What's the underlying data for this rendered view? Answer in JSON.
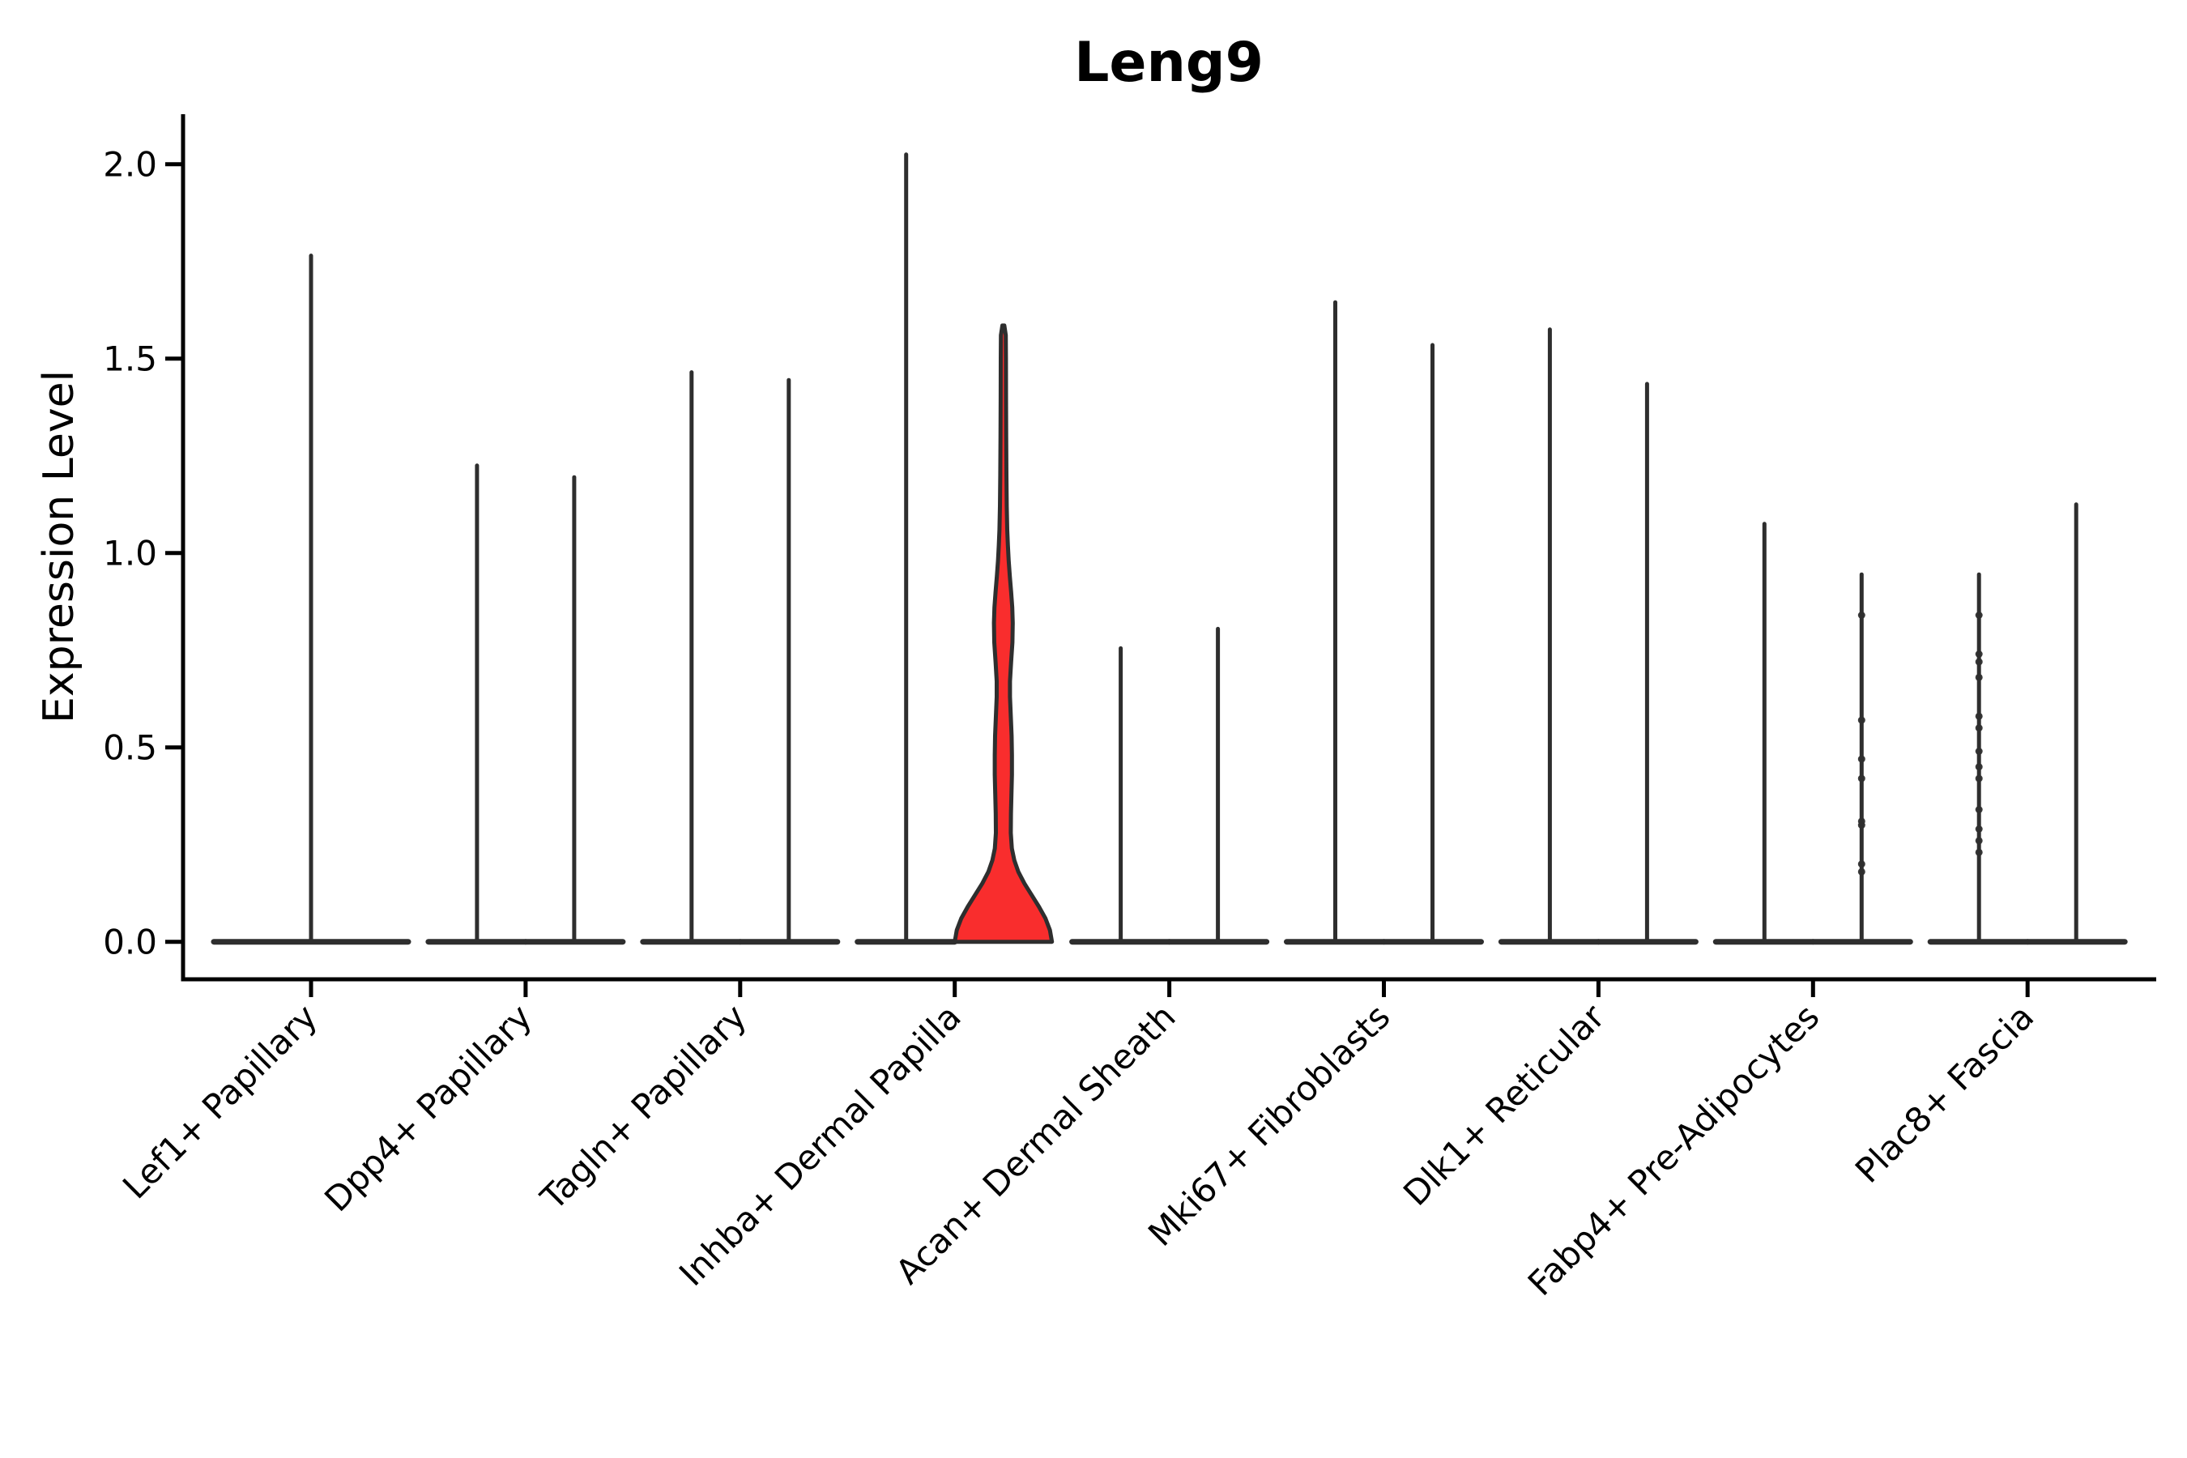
{
  "figure": {
    "title": "Leng9",
    "ylabel": "Expression Level"
  },
  "chart_data": {
    "type": "violin",
    "title": "Leng9",
    "xlabel": "",
    "ylabel": "Expression Level",
    "ylim": [
      0,
      2.1
    ],
    "yticks": [
      0.0,
      0.5,
      1.0,
      1.5,
      2.0
    ],
    "ytick_labels": [
      "0.0",
      "0.5",
      "1.0",
      "1.5",
      "2.0"
    ],
    "grid": false,
    "legend": null,
    "categories": [
      "Lef1+ Papillary",
      "Dpp4+ Papillary",
      "Tagln+ Papillary",
      "Inhba+ Dermal Papilla",
      "Acan+ Dermal Sheath",
      "Mki67+ Fibroblasts",
      "Dlk1+ Reticular",
      "Fabp4+ Pre-Adipocytes",
      "Plac8+ Fascia"
    ],
    "violins": [
      {
        "category": 0,
        "offset": "center",
        "max": 1.77,
        "highlighted": false
      },
      {
        "category": 1,
        "offset": "left",
        "max": 1.23,
        "highlighted": false
      },
      {
        "category": 1,
        "offset": "right",
        "max": 1.2,
        "highlighted": false
      },
      {
        "category": 2,
        "offset": "left",
        "max": 1.47,
        "highlighted": false
      },
      {
        "category": 2,
        "offset": "right",
        "max": 1.45,
        "highlighted": false
      },
      {
        "category": 3,
        "offset": "left",
        "max": 2.03,
        "highlighted": false
      },
      {
        "category": 3,
        "offset": "right",
        "max": 1.59,
        "highlighted": true
      },
      {
        "category": 4,
        "offset": "left",
        "max": 0.76,
        "highlighted": false
      },
      {
        "category": 4,
        "offset": "right",
        "max": 0.81,
        "highlighted": false
      },
      {
        "category": 5,
        "offset": "left",
        "max": 1.65,
        "highlighted": false
      },
      {
        "category": 5,
        "offset": "right",
        "max": 1.54,
        "highlighted": false
      },
      {
        "category": 6,
        "offset": "left",
        "max": 1.58,
        "highlighted": false
      },
      {
        "category": 6,
        "offset": "right",
        "max": 1.44,
        "highlighted": false
      },
      {
        "category": 7,
        "offset": "left",
        "max": 1.08,
        "highlighted": false
      },
      {
        "category": 7,
        "offset": "right",
        "max": 0.95,
        "highlighted": false,
        "dots": [
          0.18,
          0.2,
          0.3,
          0.31,
          0.42,
          0.47,
          0.57,
          0.84
        ]
      },
      {
        "category": 8,
        "offset": "left",
        "max": 0.95,
        "highlighted": false,
        "dots": [
          0.23,
          0.26,
          0.29,
          0.34,
          0.42,
          0.45,
          0.49,
          0.55,
          0.58,
          0.68,
          0.72,
          0.74,
          0.84
        ]
      },
      {
        "category": 8,
        "offset": "right",
        "max": 1.13,
        "highlighted": false
      }
    ],
    "highlight_profile": [
      [
        0.0,
        60.0
      ],
      [
        0.03,
        57.5
      ],
      [
        0.06,
        52.0
      ],
      [
        0.09,
        44.0
      ],
      [
        0.12,
        35.0
      ],
      [
        0.15,
        26.0
      ],
      [
        0.18,
        18.5
      ],
      [
        0.21,
        13.5
      ],
      [
        0.24,
        10.5
      ],
      [
        0.28,
        9.2
      ],
      [
        0.33,
        9.4
      ],
      [
        0.38,
        10.0
      ],
      [
        0.43,
        10.6
      ],
      [
        0.48,
        10.6
      ],
      [
        0.53,
        10.2
      ],
      [
        0.58,
        9.2
      ],
      [
        0.63,
        8.2
      ],
      [
        0.67,
        8.2
      ],
      [
        0.72,
        9.6
      ],
      [
        0.77,
        11.2
      ],
      [
        0.82,
        11.6
      ],
      [
        0.86,
        11.0
      ],
      [
        0.9,
        9.6
      ],
      [
        0.94,
        8.0
      ],
      [
        0.98,
        6.6
      ],
      [
        1.02,
        5.6
      ],
      [
        1.06,
        4.8
      ],
      [
        1.12,
        4.2
      ],
      [
        1.2,
        3.8
      ],
      [
        1.3,
        3.5
      ],
      [
        1.4,
        3.3
      ],
      [
        1.5,
        3.2
      ],
      [
        1.56,
        3.0
      ],
      [
        1.585,
        1.2
      ]
    ],
    "colors": {
      "violin_fill": "#f92d2d",
      "violin_stroke": "#2e2e2e",
      "axis": "#000000",
      "background": "#ffffff"
    }
  }
}
